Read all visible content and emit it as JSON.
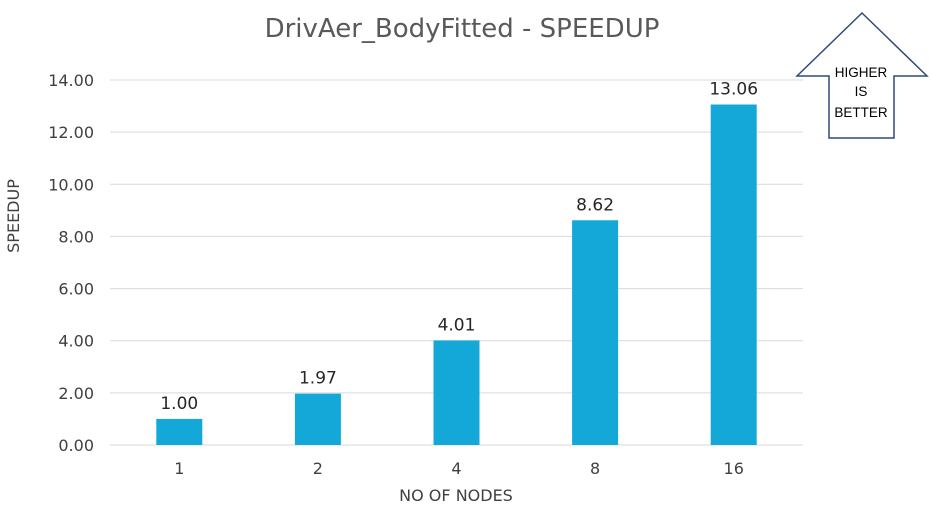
{
  "chart_data": {
    "type": "bar",
    "title": "DrivAer_BodyFitted - SPEEDUP",
    "xlabel": "NO OF NODES",
    "ylabel": "SPEEDUP",
    "categories": [
      "1",
      "2",
      "4",
      "8",
      "16"
    ],
    "values": [
      1.0,
      1.97,
      4.01,
      8.62,
      13.06
    ],
    "value_labels": [
      "1.00",
      "1.97",
      "4.01",
      "8.62",
      "13.06"
    ],
    "ylim": [
      0,
      14
    ],
    "yticks": [
      "0.00",
      "2.00",
      "4.00",
      "6.00",
      "8.00",
      "10.00",
      "12.00",
      "14.00"
    ],
    "grid": true,
    "bar_color": "#13a8d8"
  },
  "callout": {
    "line1": "HIGHER",
    "line2": "IS",
    "line3": "BETTER"
  }
}
